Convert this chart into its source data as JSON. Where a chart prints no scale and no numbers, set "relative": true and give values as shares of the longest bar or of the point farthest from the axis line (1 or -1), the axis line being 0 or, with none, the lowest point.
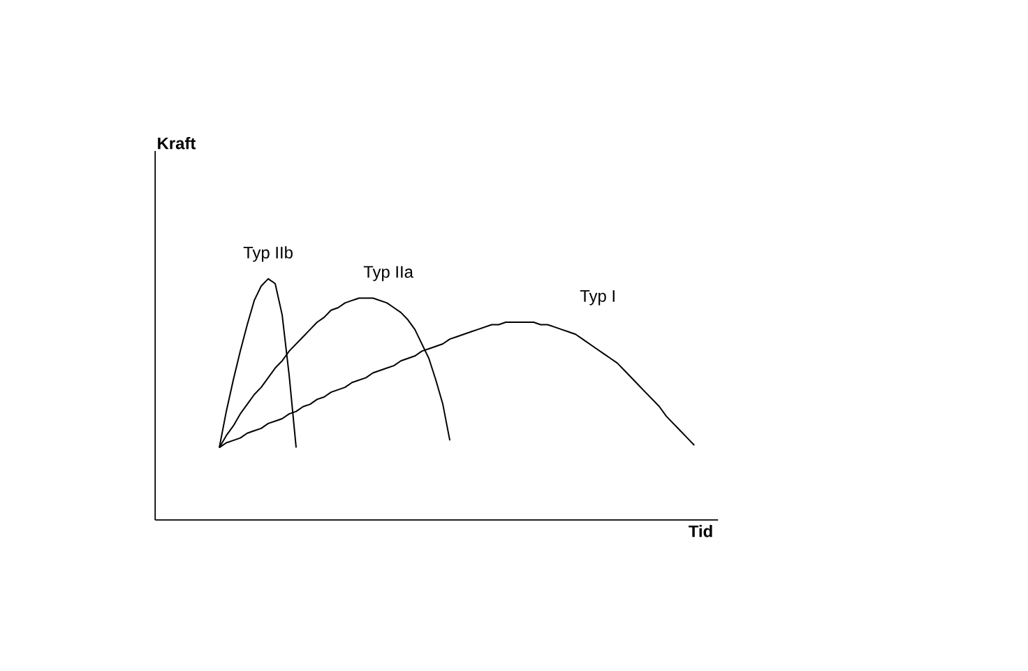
{
  "chart_data": {
    "type": "line",
    "relative": true,
    "xlabel": "Tid",
    "annotations": [
      "Kraft"
    ],
    "marker": "none",
    "line_style": "solid",
    "categories": [
      null,
      null,
      null,
      null,
      null,
      null,
      null,
      null,
      null,
      null,
      null,
      null,
      null,
      null,
      null,
      null,
      null,
      null,
      null,
      null,
      null,
      null,
      null,
      null,
      null,
      null,
      null,
      null,
      null,
      null,
      null,
      null,
      null,
      null,
      null,
      null,
      null,
      null,
      null,
      null,
      null,
      null,
      null,
      null,
      null,
      null,
      null,
      null,
      null,
      null,
      null,
      null,
      null,
      null,
      null,
      null,
      null,
      null,
      null,
      null,
      null,
      null,
      null,
      null,
      null,
      null,
      null,
      null,
      null
    ],
    "series": [
      {
        "name": "Typ IIb",
        "color": "#000000",
        "values": [
          0.3,
          0.45,
          0.58,
          0.7,
          0.81,
          0.91,
          0.97,
          1.0,
          0.98,
          0.85,
          0.6,
          0.3,
          null,
          null,
          null,
          null,
          null,
          null,
          null,
          null,
          null,
          null,
          null,
          null,
          null,
          null,
          null,
          null,
          null,
          null,
          null,
          null,
          null,
          null,
          null,
          null,
          null,
          null,
          null,
          null,
          null,
          null,
          null,
          null,
          null,
          null,
          null,
          null,
          null,
          null,
          null,
          null,
          null,
          null,
          null,
          null,
          null,
          null,
          null,
          null,
          null,
          null,
          null,
          null,
          null,
          null,
          null,
          null,
          null
        ]
      },
      {
        "name": "Typ IIa",
        "color": "#000000",
        "values": [
          0.3,
          0.35,
          0.39,
          0.44,
          0.48,
          0.52,
          0.55,
          0.59,
          0.63,
          0.66,
          0.7,
          0.73,
          0.76,
          0.79,
          0.82,
          0.84,
          0.87,
          0.88,
          0.9,
          0.91,
          0.92,
          0.92,
          0.92,
          0.91,
          0.9,
          0.88,
          0.86,
          0.83,
          0.79,
          0.73,
          0.67,
          0.58,
          0.48,
          0.33,
          null,
          null,
          null,
          null,
          null,
          null,
          null,
          null,
          null,
          null,
          null,
          null,
          null,
          null,
          null,
          null,
          null,
          null,
          null,
          null,
          null,
          null,
          null,
          null,
          null,
          null,
          null,
          null,
          null,
          null,
          null,
          null,
          null,
          null,
          null
        ]
      },
      {
        "name": "Typ I",
        "color": "#000000",
        "values": [
          0.3,
          0.32,
          0.33,
          0.34,
          0.36,
          0.37,
          0.38,
          0.4,
          0.41,
          0.42,
          0.44,
          0.45,
          0.47,
          0.48,
          0.5,
          0.51,
          0.53,
          0.54,
          0.55,
          0.57,
          0.58,
          0.59,
          0.61,
          0.62,
          0.63,
          0.64,
          0.66,
          0.67,
          0.68,
          0.7,
          0.71,
          0.72,
          0.73,
          0.75,
          0.76,
          0.77,
          0.78,
          0.79,
          0.8,
          0.81,
          0.81,
          0.82,
          0.82,
          0.82,
          0.82,
          0.82,
          0.81,
          0.81,
          0.8,
          0.79,
          0.78,
          0.77,
          0.75,
          0.73,
          0.71,
          0.69,
          0.67,
          0.65,
          0.62,
          0.59,
          0.56,
          0.53,
          0.5,
          0.47,
          0.43,
          0.4,
          0.37,
          0.34,
          0.31
        ]
      }
    ]
  }
}
